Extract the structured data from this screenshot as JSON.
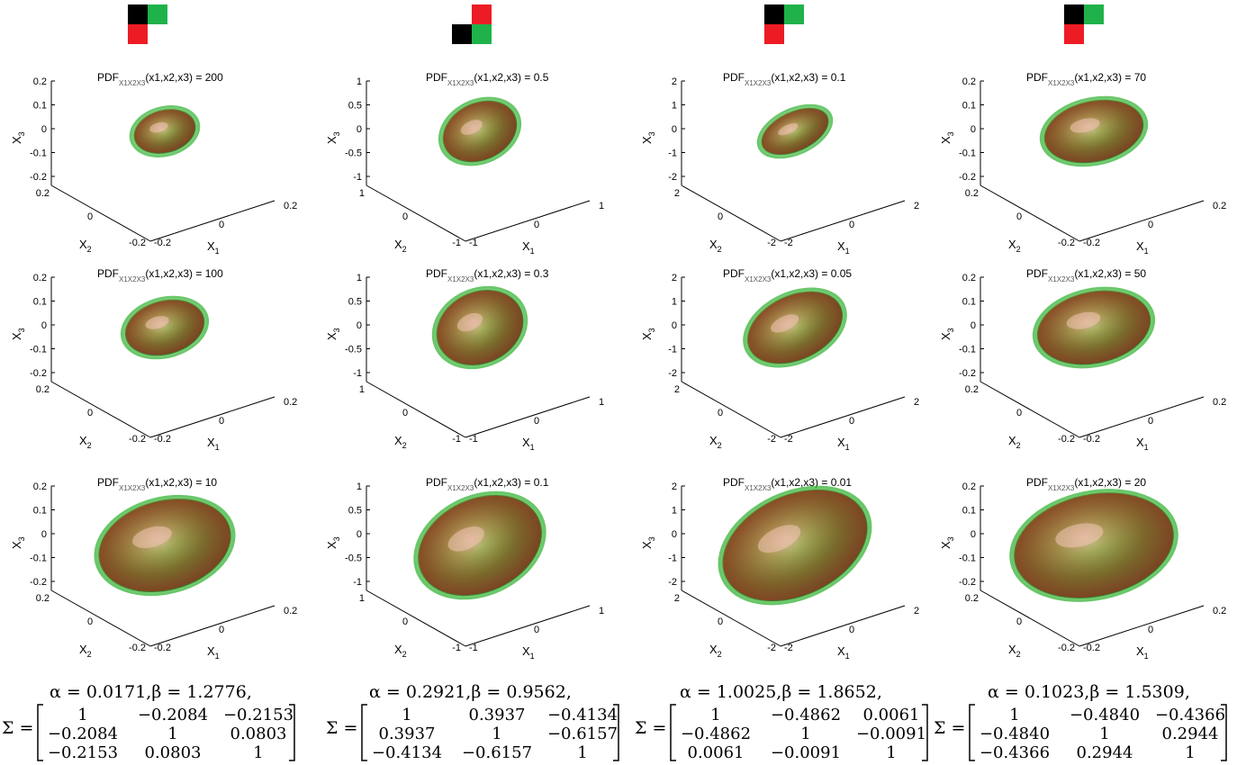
{
  "pdf_label": "PDF",
  "pdf_subscript": "X1X2X3",
  "pdf_args": "(x1,x2,x3) =",
  "axes": {
    "x1": "X1",
    "x2": "X2",
    "x3": "X3"
  },
  "colors": {
    "black": "#000000",
    "green": "#1fb24a",
    "red": "#ed1c24",
    "surface_green": "#2aa02a",
    "surface_red": "#b22222",
    "surface_olive": "#6b7a1f"
  },
  "columns": [
    {
      "legend": "black-green top, red bottom-left",
      "legend_pattern": "tl",
      "tick": "0.2",
      "ticks": [
        "0.2",
        "0.1",
        "0",
        "-0.1",
        "-0.2"
      ],
      "base_ticks": [
        "0.2",
        "0",
        "-0.2"
      ],
      "levels": [
        "200",
        "100",
        "10"
      ],
      "alpha": "0.0171",
      "beta": "1.2776",
      "sigma": [
        [
          "1",
          "−0.2084",
          "−0.2153"
        ],
        [
          "−0.2084",
          "1",
          "0.0803"
        ],
        [
          "−0.2153",
          "0.0803",
          "1"
        ]
      ]
    },
    {
      "legend": "red top-right, black-green bottom",
      "legend_pattern": "br",
      "tick": "1",
      "ticks": [
        "1",
        "0.5",
        "0",
        "-0.5",
        "-1"
      ],
      "base_ticks": [
        "1",
        "0",
        "-1"
      ],
      "levels": [
        "0.5",
        "0.3",
        "0.1"
      ],
      "alpha": "0.2921",
      "beta": "0.9562",
      "sigma": [
        [
          "1",
          "0.3937",
          "−0.4134"
        ],
        [
          "0.3937",
          "1",
          "−0.6157"
        ],
        [
          "−0.4134",
          "−0.6157",
          "1"
        ]
      ]
    },
    {
      "legend": "black-green top, red bottom-left",
      "legend_pattern": "tl",
      "tick": "2",
      "ticks": [
        "2",
        "1",
        "0",
        "-1",
        "-2"
      ],
      "base_ticks": [
        "2",
        "0",
        "-2"
      ],
      "levels": [
        "0.1",
        "0.05",
        "0.01"
      ],
      "alpha": "1.0025",
      "beta": "1.8652",
      "sigma": [
        [
          "1",
          "−0.4862",
          "0.0061"
        ],
        [
          "−0.4862",
          "1",
          "−0.0091"
        ],
        [
          "0.0061",
          "−0.0091",
          "1"
        ]
      ]
    },
    {
      "legend": "black-green top, red bottom-left",
      "legend_pattern": "tl",
      "tick": "0.2",
      "ticks": [
        "0.2",
        "0.1",
        "0",
        "-0.1",
        "-0.2"
      ],
      "base_ticks": [
        "0.2",
        "0",
        "-0.2"
      ],
      "levels": [
        "70",
        "50",
        "20"
      ],
      "alpha": "0.1023",
      "beta": "1.5309",
      "sigma": [
        [
          "1",
          "−0.4840",
          "−0.4366"
        ],
        [
          "−0.4840",
          "1",
          "0.2944"
        ],
        [
          "−0.4366",
          "0.2944",
          "1"
        ]
      ]
    }
  ],
  "eq": {
    "alpha_sym": "α",
    "beta_sym": "β",
    "equals": " = ",
    "comma": ",",
    "sigma_sym": "Σ",
    "sigma_eq": "Σ ="
  }
}
